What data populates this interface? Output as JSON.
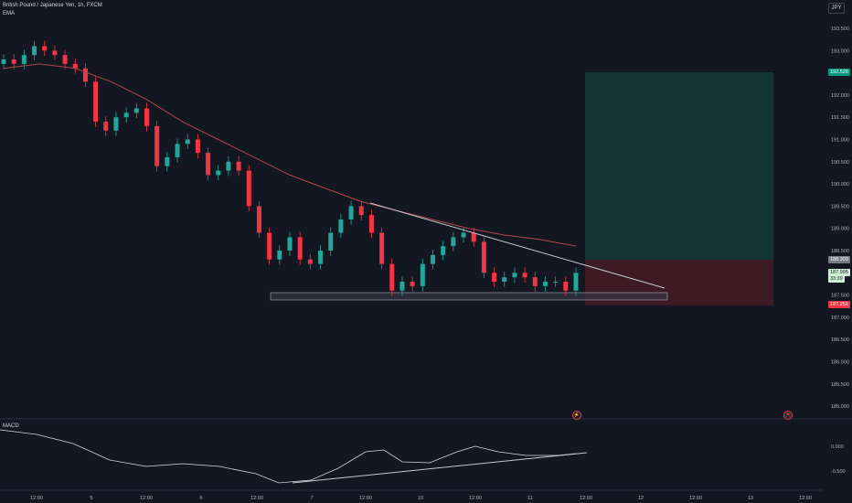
{
  "header": {
    "title": "British Pound / Japanese Yen, 1h, FXCM",
    "indicator": "EMA",
    "currency": "JPY"
  },
  "colors": {
    "background": "#131722",
    "up": "#26a69a",
    "down": "#f23645",
    "ema": "#b2444f",
    "profit_zone": "#123532",
    "loss_zone": "#3d1a24",
    "trendline": "#c8c8d0"
  },
  "price_axis": {
    "ticks": [
      "193.500",
      "193.000",
      "192.500",
      "192.000",
      "191.500",
      "191.000",
      "190.500",
      "190.000",
      "189.500",
      "189.000",
      "188.500",
      "188.000",
      "187.500",
      "187.000",
      "186.500",
      "186.000",
      "185.500",
      "185.000"
    ],
    "badges": {
      "target": "192.528",
      "entry": "188.309",
      "last_price": "187.995",
      "countdown": "33:39",
      "stop": "187.251"
    }
  },
  "time_axis": [
    "12:00",
    "5",
    "12:00",
    "6",
    "12:00",
    "7",
    "12:00",
    "10",
    "12:00",
    "11",
    "12:00",
    "12",
    "12:00",
    "13",
    "12:00"
  ],
  "macd": {
    "label": "MACD",
    "ticks": [
      "0.000",
      "-0.500"
    ]
  },
  "events": {
    "lightning": "⚡",
    "flag": "⚑"
  },
  "chart_data": {
    "type": "candlestick",
    "title": "British Pound / Japanese Yen, 1h, FXCM",
    "ylim": [
      184.8,
      193.9
    ],
    "x_ticks": [
      "12:00",
      "5",
      "12:00",
      "6",
      "12:00",
      "7",
      "12:00",
      "10",
      "12:00",
      "11",
      "12:00",
      "12",
      "12:00",
      "13",
      "12:00"
    ],
    "closes_approx": [
      192.8,
      192.7,
      192.9,
      193.1,
      193.0,
      192.9,
      192.7,
      192.6,
      192.3,
      191.4,
      191.2,
      191.5,
      191.6,
      191.7,
      191.3,
      190.4,
      190.6,
      190.9,
      191.0,
      190.7,
      190.2,
      190.3,
      190.5,
      190.3,
      189.5,
      188.9,
      188.3,
      188.5,
      188.8,
      188.3,
      188.2,
      188.5,
      188.9,
      189.2,
      189.5,
      189.3,
      188.9,
      188.2,
      187.6,
      187.8,
      187.7,
      188.2,
      188.4,
      188.6,
      188.8,
      188.9,
      188.7,
      188.0,
      187.8,
      187.9,
      188.0,
      187.9,
      187.7,
      187.8,
      187.8,
      187.6,
      188.0
    ],
    "ema_approx": [
      192.6,
      192.7,
      192.6,
      192.3,
      191.9,
      191.4,
      191.0,
      190.6,
      190.2,
      189.9,
      189.6,
      189.4,
      189.2,
      189.0,
      188.85,
      188.75,
      188.6
    ],
    "long_position": {
      "target": 192.528,
      "entry": 188.309,
      "stop": 187.251
    },
    "support_zone": [
      187.4,
      187.58
    ],
    "macd": {
      "ticks": [
        0.0,
        -0.5
      ]
    }
  }
}
